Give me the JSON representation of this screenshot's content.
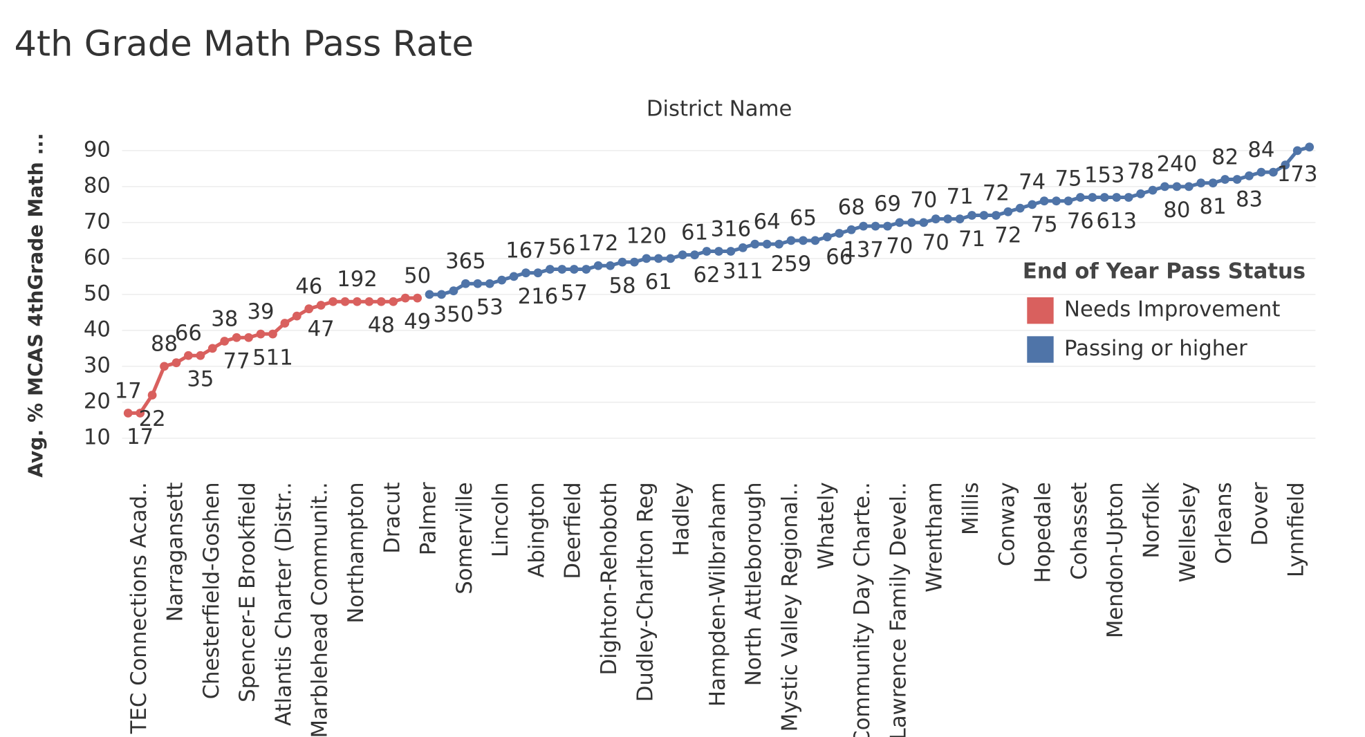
{
  "chart_data": {
    "type": "line",
    "title": "4th Grade Math Pass Rate",
    "x_axis_title": "District Name",
    "y_axis_title": "Avg. % MCAS 4thGrade Math ...",
    "legend_title": "End of Year Pass Status",
    "legend": "right",
    "grid": true,
    "ylim": [
      0,
      93
    ],
    "yticks": [
      10,
      20,
      30,
      40,
      50,
      60,
      70,
      80,
      90
    ],
    "categories": [
      null,
      "TEC Connections Acad..",
      null,
      null,
      "Narragansett",
      null,
      null,
      "Chesterfield-Goshen",
      null,
      null,
      "Spencer-E Brookfield",
      null,
      null,
      "Atlantis Charter (Distr..",
      null,
      null,
      "Marblehead Communit..",
      null,
      null,
      "Northampton",
      null,
      null,
      "Dracut",
      null,
      null,
      "Palmer",
      null,
      null,
      "Somerville",
      null,
      null,
      "Lincoln",
      null,
      null,
      "Abington",
      null,
      null,
      "Deerfield",
      null,
      null,
      "Dighton-Rehoboth",
      null,
      null,
      "Dudley-Charlton Reg",
      null,
      null,
      "Hadley",
      null,
      null,
      "Hampden-Wilbraham",
      null,
      null,
      "North Attleborough",
      null,
      null,
      "Mystic Valley Regional..",
      null,
      null,
      "Whately",
      null,
      null,
      "Community Day Charte..",
      null,
      null,
      "Lawrence Family Devel..",
      null,
      null,
      "Wrentham",
      null,
      null,
      "Millis",
      null,
      null,
      "Conway",
      null,
      null,
      "Hopedale",
      null,
      null,
      "Cohasset",
      null,
      null,
      "Mendon-Upton",
      null,
      null,
      "Norfolk",
      null,
      null,
      "Wellesley",
      null,
      null,
      "Orleans",
      null,
      null,
      "Dover",
      null,
      null,
      "Lynnfield",
      null
    ],
    "series": [
      {
        "name": "Needs Improvement",
        "color": "#d9605e",
        "values": [
          17,
          17,
          22,
          30,
          31,
          33,
          33,
          35,
          37,
          38,
          38,
          39,
          39,
          42,
          44,
          46,
          47,
          48,
          48,
          48,
          48,
          48,
          48,
          49,
          49,
          null,
          null,
          null,
          null,
          null,
          null,
          null,
          null,
          null,
          null,
          null,
          null,
          null,
          null,
          null,
          null,
          null,
          null,
          null,
          null,
          null,
          null,
          null,
          null,
          null,
          null,
          null,
          null,
          null,
          null,
          null,
          null,
          null,
          null,
          null,
          null,
          null,
          null,
          null,
          null,
          null,
          null,
          null,
          null,
          null,
          null,
          null,
          null,
          null,
          null,
          null,
          null,
          null,
          null,
          null,
          null,
          null,
          null,
          null,
          null,
          null,
          null,
          null,
          null,
          null,
          null,
          null,
          null,
          null,
          null,
          null,
          null,
          null,
          null
        ],
        "point_labels": [
          {
            "index": 0,
            "label": "17",
            "side": "above"
          },
          {
            "index": 1,
            "label": "17",
            "side": "below"
          },
          {
            "index": 2,
            "label": "22",
            "side": "below"
          },
          {
            "index": 3,
            "label": "88",
            "side": "above"
          },
          {
            "index": 5,
            "label": "66",
            "side": "above"
          },
          {
            "index": 6,
            "label": "35",
            "side": "below"
          },
          {
            "index": 8,
            "label": "38",
            "side": "above"
          },
          {
            "index": 9,
            "label": "77",
            "side": "below"
          },
          {
            "index": 11,
            "label": "39",
            "side": "above"
          },
          {
            "index": 12,
            "label": "511",
            "side": "below"
          },
          {
            "index": 15,
            "label": "46",
            "side": "above"
          },
          {
            "index": 16,
            "label": "47",
            "side": "below"
          },
          {
            "index": 19,
            "label": "192",
            "side": "above"
          },
          {
            "index": 21,
            "label": "48",
            "side": "below"
          },
          {
            "index": 24,
            "label": "50",
            "side": "above"
          },
          {
            "index": 24,
            "label": "49",
            "side": "below"
          }
        ]
      },
      {
        "name": "Passing or higher",
        "color": "#4f74a8",
        "values": [
          null,
          null,
          null,
          null,
          null,
          null,
          null,
          null,
          null,
          null,
          null,
          null,
          null,
          null,
          null,
          null,
          null,
          null,
          null,
          null,
          null,
          null,
          null,
          null,
          null,
          50,
          50,
          51,
          53,
          53,
          53,
          54,
          55,
          56,
          56,
          57,
          57,
          57,
          57,
          58,
          58,
          59,
          59,
          60,
          60,
          60,
          61,
          61,
          62,
          62,
          62,
          63,
          64,
          64,
          64,
          65,
          65,
          65,
          66,
          67,
          68,
          69,
          69,
          69,
          70,
          70,
          70,
          71,
          71,
          71,
          72,
          72,
          72,
          73,
          74,
          75,
          76,
          76,
          76,
          77,
          77,
          77,
          77,
          77,
          78,
          79,
          80,
          80,
          80,
          81,
          81,
          82,
          82,
          83,
          84,
          84,
          86,
          90,
          91
        ],
        "point_labels": [
          {
            "index": 27,
            "label": "350",
            "side": "below"
          },
          {
            "index": 28,
            "label": "365",
            "side": "above"
          },
          {
            "index": 30,
            "label": "53",
            "side": "below"
          },
          {
            "index": 33,
            "label": "167",
            "side": "above"
          },
          {
            "index": 34,
            "label": "216",
            "side": "below"
          },
          {
            "index": 36,
            "label": "56",
            "side": "above"
          },
          {
            "index": 37,
            "label": "57",
            "side": "below"
          },
          {
            "index": 39,
            "label": "172",
            "side": "above"
          },
          {
            "index": 41,
            "label": "58",
            "side": "below"
          },
          {
            "index": 43,
            "label": "120",
            "side": "above"
          },
          {
            "index": 44,
            "label": "61",
            "side": "below"
          },
          {
            "index": 47,
            "label": "61",
            "side": "above"
          },
          {
            "index": 48,
            "label": "62",
            "side": "below"
          },
          {
            "index": 50,
            "label": "316",
            "side": "above"
          },
          {
            "index": 51,
            "label": "311",
            "side": "below"
          },
          {
            "index": 53,
            "label": "64",
            "side": "above"
          },
          {
            "index": 55,
            "label": "259",
            "side": "below"
          },
          {
            "index": 56,
            "label": "65",
            "side": "above"
          },
          {
            "index": 59,
            "label": "66",
            "side": "below"
          },
          {
            "index": 60,
            "label": "68",
            "side": "above"
          },
          {
            "index": 61,
            "label": "137",
            "side": "below"
          },
          {
            "index": 63,
            "label": "69",
            "side": "above"
          },
          {
            "index": 64,
            "label": "70",
            "side": "below"
          },
          {
            "index": 66,
            "label": "70",
            "side": "above"
          },
          {
            "index": 67,
            "label": "70",
            "side": "below"
          },
          {
            "index": 69,
            "label": "71",
            "side": "above"
          },
          {
            "index": 70,
            "label": "71",
            "side": "below"
          },
          {
            "index": 72,
            "label": "72",
            "side": "above"
          },
          {
            "index": 73,
            "label": "72",
            "side": "below"
          },
          {
            "index": 75,
            "label": "74",
            "side": "above"
          },
          {
            "index": 76,
            "label": "75",
            "side": "below"
          },
          {
            "index": 78,
            "label": "75",
            "side": "above"
          },
          {
            "index": 79,
            "label": "76",
            "side": "below"
          },
          {
            "index": 81,
            "label": "153",
            "side": "above"
          },
          {
            "index": 82,
            "label": "613",
            "side": "below"
          },
          {
            "index": 84,
            "label": "78",
            "side": "above"
          },
          {
            "index": 87,
            "label": "240",
            "side": "above"
          },
          {
            "index": 87,
            "label": "80",
            "side": "below"
          },
          {
            "index": 90,
            "label": "81",
            "side": "below"
          },
          {
            "index": 91,
            "label": "82",
            "side": "above"
          },
          {
            "index": 93,
            "label": "83",
            "side": "below"
          },
          {
            "index": 94,
            "label": "84",
            "side": "above"
          },
          {
            "index": 97,
            "label": "173",
            "side": "below"
          }
        ]
      }
    ]
  }
}
